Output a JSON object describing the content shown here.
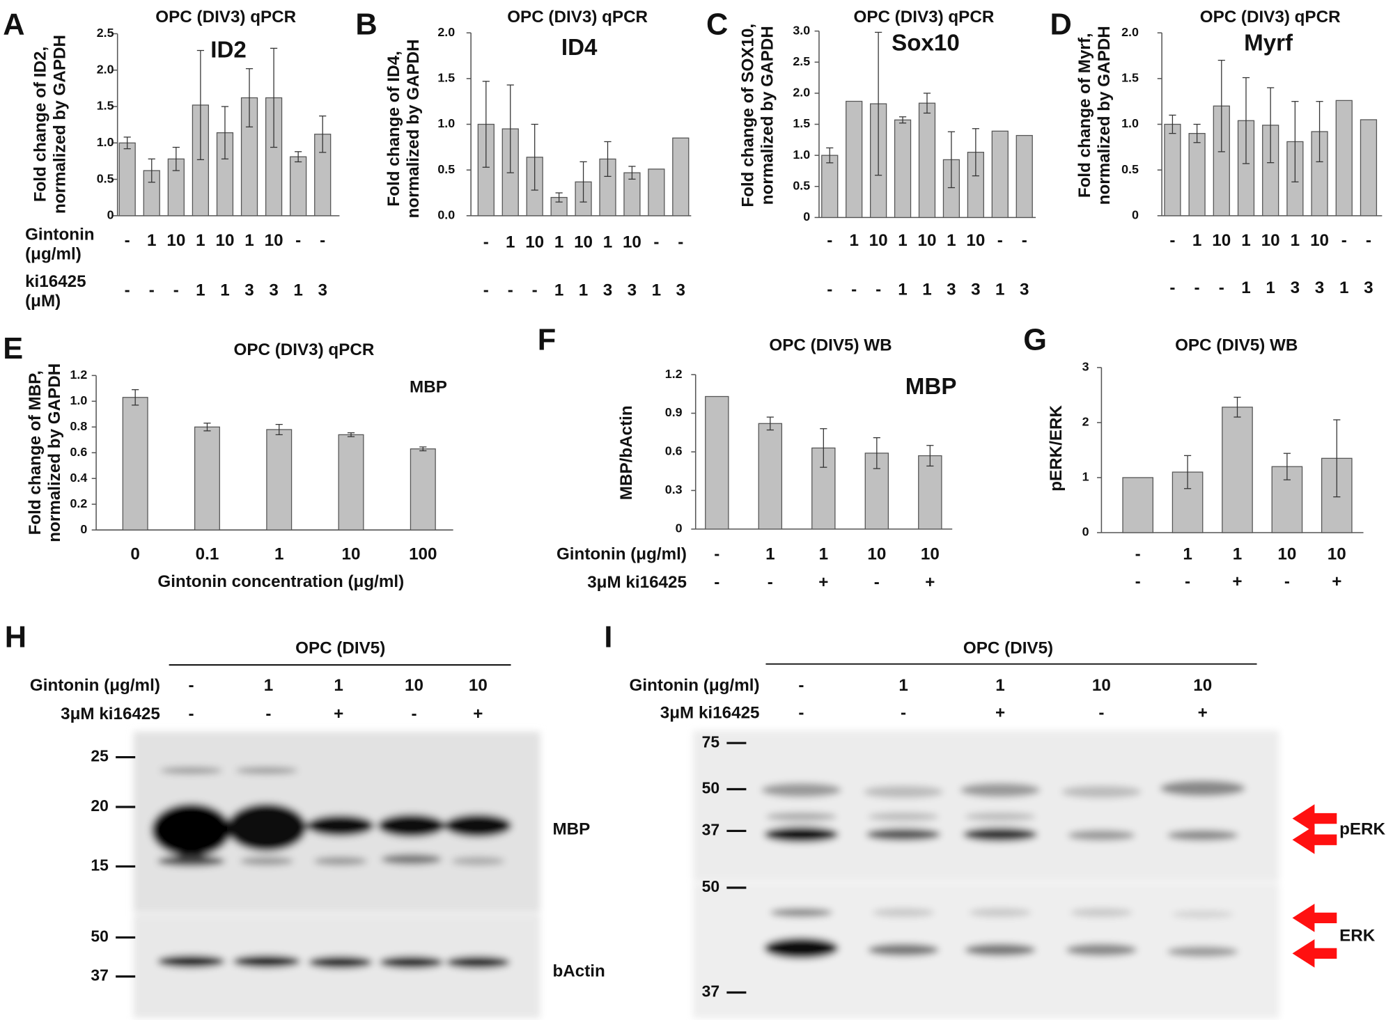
{
  "chart_data": [
    {
      "type": "bar",
      "panel": "A",
      "title": "OPC (DIV3) qPCR",
      "subtitle": "ID2",
      "ylabel": [
        "Fold change of ID2,",
        "normalized by GAPDH"
      ],
      "color": "#c0c0c0",
      "ylim": [
        0,
        2.5
      ],
      "yticks": [
        0,
        0.5,
        {
          "value": 1,
          "label": "1.0"
        },
        1.5,
        {
          "value": 2,
          "label": "2.0"
        },
        2.5
      ],
      "values": [
        1.0,
        0.62,
        0.78,
        1.52,
        1.14,
        1.62,
        1.62,
        0.81,
        1.12
      ],
      "errors": [
        0.08,
        0.16,
        0.16,
        0.75,
        0.36,
        0.4,
        0.68,
        0.07,
        0.25
      ],
      "rows": [
        {
          "name": [
            "Gintonin",
            "(μg/ml)"
          ],
          "labels": [
            "-",
            "1",
            "10",
            "1",
            "10",
            "1",
            "10",
            "-",
            "-"
          ]
        },
        {
          "name": [
            "ki16425",
            "(μM)"
          ],
          "labels": [
            "-",
            "-",
            "-",
            "1",
            "1",
            "3",
            "3",
            "1",
            "3"
          ]
        }
      ]
    },
    {
      "type": "bar",
      "panel": "B",
      "title": "OPC (DIV3) qPCR",
      "subtitle": "ID4",
      "ylabel": [
        "Fold change of ID4,",
        "normalized by GAPDH"
      ],
      "color": "#c0c0c0",
      "ylim": [
        0,
        2
      ],
      "yticks": [
        {
          "value": 0,
          "label": "0.0"
        },
        0.5,
        {
          "value": 1,
          "label": "1.0"
        },
        1.5,
        {
          "value": 2,
          "label": "2.0"
        }
      ],
      "values": [
        1.0,
        0.95,
        0.64,
        0.2,
        0.37,
        0.62,
        0.47,
        0.51,
        0.85
      ],
      "errors": [
        0.47,
        0.48,
        0.36,
        0.05,
        0.22,
        0.19,
        0.07,
        null,
        null
      ],
      "rows": [
        {
          "labels": [
            "-",
            "1",
            "10",
            "1",
            "10",
            "1",
            "10",
            "-",
            "-"
          ]
        },
        {
          "labels": [
            "-",
            "-",
            "-",
            "1",
            "1",
            "3",
            "3",
            "1",
            "3"
          ]
        }
      ]
    },
    {
      "type": "bar",
      "panel": "C",
      "title": "OPC (DIV3) qPCR",
      "subtitle": "Sox10",
      "ylabel": [
        "Fold change of SOX10,",
        "normalized by GAPDH"
      ],
      "color": "#c0c0c0",
      "ylim": [
        0,
        3
      ],
      "yticks": [
        0,
        0.5,
        {
          "value": 1,
          "label": "1.0"
        },
        1.5,
        {
          "value": 2,
          "label": "2.0"
        },
        2.5,
        {
          "value": 3,
          "label": "3.0"
        }
      ],
      "values": [
        1.0,
        1.87,
        1.83,
        1.57,
        1.84,
        0.93,
        1.05,
        1.39,
        1.32
      ],
      "errors": [
        0.12,
        null,
        1.15,
        0.05,
        0.16,
        0.45,
        0.38,
        null,
        null
      ],
      "rows": [
        {
          "labels": [
            "-",
            "1",
            "10",
            "1",
            "10",
            "1",
            "10",
            "-",
            "-"
          ]
        },
        {
          "labels": [
            "-",
            "-",
            "-",
            "1",
            "1",
            "3",
            "3",
            "1",
            "3"
          ]
        }
      ]
    },
    {
      "type": "bar",
      "panel": "D",
      "title": "OPC (DIV3) qPCR",
      "subtitle": "Myrf",
      "ylabel": [
        "Fold change of Myrf,",
        "normalized by GAPDH"
      ],
      "color": "#c0c0c0",
      "ylim": [
        0,
        2
      ],
      "yticks": [
        0,
        0.5,
        {
          "value": 1,
          "label": "1.0"
        },
        1.5,
        {
          "value": 2,
          "label": "2.0"
        }
      ],
      "values": [
        1.0,
        0.9,
        1.2,
        1.04,
        0.99,
        0.81,
        0.92,
        1.26,
        1.05
      ],
      "errors": [
        0.1,
        0.1,
        0.5,
        0.47,
        0.41,
        0.44,
        0.33,
        null,
        null
      ],
      "rows": [
        {
          "labels": [
            "-",
            "1",
            "10",
            "1",
            "10",
            "1",
            "10",
            "-",
            "-"
          ]
        },
        {
          "labels": [
            "-",
            "-",
            "-",
            "1",
            "1",
            "3",
            "3",
            "1",
            "3"
          ]
        }
      ]
    },
    {
      "type": "bar",
      "panel": "E",
      "title": "OPC (DIV3) qPCR",
      "subtitle": "MBP",
      "ylabel": [
        "Fold change of MBP,",
        "normalized by GAPDH"
      ],
      "color": "#c0c0c0",
      "ylim": [
        0,
        1.2
      ],
      "yticks": [
        0,
        0.2,
        0.4,
        0.6,
        0.8,
        {
          "value": 1,
          "label": "1.0"
        },
        1.2
      ],
      "categories": [
        "0",
        "0.1",
        "1",
        "10",
        "100"
      ],
      "xlabel": "Gintonin concentration (μg/ml)",
      "values": [
        1.03,
        0.8,
        0.78,
        0.74,
        0.63
      ],
      "errors": [
        0.06,
        0.03,
        0.04,
        0.015,
        0.015
      ]
    },
    {
      "type": "bar",
      "panel": "F",
      "title": "OPC (DIV5) WB",
      "subtitle": "MBP",
      "ylabel": [
        "MBP/bActin"
      ],
      "color": "#c0c0c0",
      "ylim": [
        0,
        1.2
      ],
      "yticks": [
        0,
        0.3,
        0.6,
        0.9,
        1.2
      ],
      "values": [
        1.03,
        0.82,
        0.63,
        0.59,
        0.57
      ],
      "errors": [
        null,
        0.05,
        0.15,
        0.12,
        0.08
      ],
      "rows": [
        {
          "name": "Gintonin (μg/ml)",
          "labels": [
            "-",
            "1",
            "1",
            "10",
            "10"
          ]
        },
        {
          "name": "3μM ki16425",
          "labels": [
            "-",
            "-",
            "+",
            "-",
            "+"
          ]
        }
      ]
    },
    {
      "type": "bar",
      "panel": "G",
      "title": "OPC (DIV5) WB",
      "ylabel": [
        "pERK/ERK"
      ],
      "color": "#c0c0c0",
      "ylim": [
        0,
        3
      ],
      "yticks": [
        0,
        1,
        2,
        3
      ],
      "values": [
        1.0,
        1.1,
        2.28,
        1.2,
        1.35
      ],
      "errors": [
        null,
        0.3,
        0.18,
        0.24,
        0.7
      ],
      "rows": [
        {
          "labels": [
            "-",
            "1",
            "1",
            "10",
            "10"
          ]
        },
        {
          "labels": [
            "-",
            "-",
            "+",
            "-",
            "+"
          ]
        }
      ]
    }
  ],
  "blots": [
    {
      "panel": "H",
      "title": "OPC (DIV5)",
      "rows": [
        {
          "name": "Gintonin (μg/ml)",
          "labels": [
            "-",
            "1",
            "1",
            "10",
            "10"
          ]
        },
        {
          "name": "3μM ki16425",
          "labels": [
            "-",
            "-",
            "+",
            "-",
            "+"
          ]
        }
      ],
      "markers": [
        25,
        20,
        15,
        50,
        37
      ],
      "targets": [
        "MBP",
        "bActin"
      ]
    },
    {
      "panel": "I",
      "title": "OPC (DIV5)",
      "rows": [
        {
          "name": "Gintonin (μg/ml)",
          "labels": [
            "-",
            "1",
            "1",
            "10",
            "10"
          ]
        },
        {
          "name": "3μM ki16425",
          "labels": [
            "-",
            "-",
            "+",
            "-",
            "+"
          ]
        }
      ],
      "markers": [
        75,
        50,
        37,
        50,
        37
      ],
      "targets": [
        "pERK",
        "ERK"
      ]
    }
  ]
}
